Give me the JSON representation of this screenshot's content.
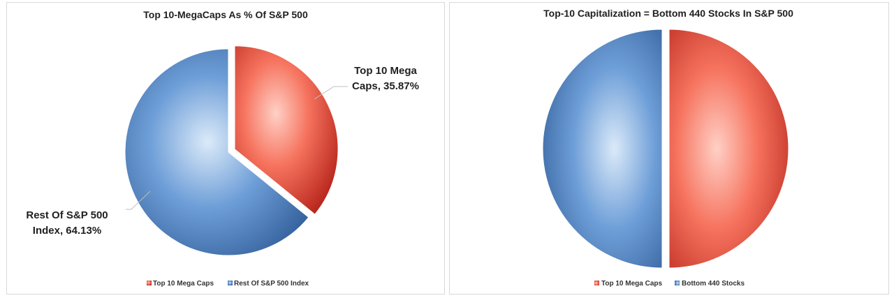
{
  "chart_data": [
    {
      "type": "pie",
      "title": "Top 10-MegaCaps As % Of S&P 500",
      "categories": [
        "Top 10 Mega Caps",
        "Rest Of S&P 500 Index"
      ],
      "values": [
        35.87,
        64.13
      ],
      "data_labels": [
        {
          "line1": "Top 10 Mega",
          "line2": "Caps, 35.87%"
        },
        {
          "line1": "Rest Of S&P 500",
          "line2": "Index, 64.13%"
        }
      ],
      "exploded_slice": "Top 10 Mega Caps",
      "legend": "bottom",
      "colors": [
        "#e8483c",
        "#4a7fc1"
      ]
    },
    {
      "type": "pie",
      "title": "Top-10 Capitalization = Bottom 440 Stocks In S&P 500",
      "categories": [
        "Top 10 Mega Caps",
        "Bottom 440 Stocks"
      ],
      "values": [
        50,
        50
      ],
      "exploded_slice": "all",
      "legend": "bottom",
      "colors": [
        "#e8483c",
        "#4a7fc1"
      ]
    }
  ]
}
